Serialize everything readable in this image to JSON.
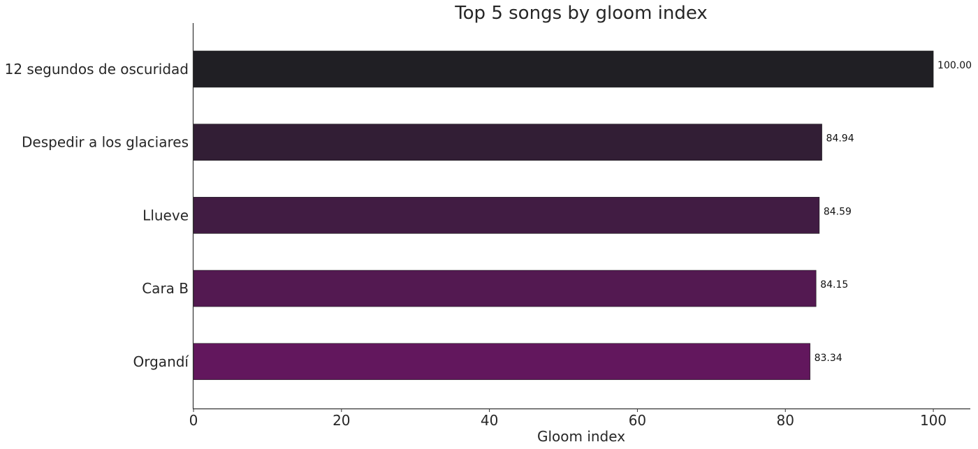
{
  "chart_data": {
    "type": "bar",
    "orientation": "horizontal",
    "title": "Top 5 songs by gloom index",
    "xlabel": "Gloom index",
    "ylabel": "",
    "categories": [
      "12 segundos de oscuridad",
      "Despedir a los glaciares",
      "Llueve",
      "Cara B",
      "Organdí"
    ],
    "values": [
      100.0,
      84.94,
      84.59,
      84.15,
      83.34
    ],
    "value_labels": [
      "100.00",
      "84.94",
      "84.59",
      "84.15",
      "83.34"
    ],
    "bar_colors": [
      "#201f24",
      "#321e35",
      "#411c43",
      "#531951",
      "#62175d"
    ],
    "xlim": [
      0,
      105
    ],
    "xticks": [
      0,
      20,
      40,
      60,
      80,
      100
    ],
    "xtick_labels": [
      "0",
      "20",
      "40",
      "60",
      "80",
      "100"
    ],
    "grid": false,
    "legend": "none"
  }
}
